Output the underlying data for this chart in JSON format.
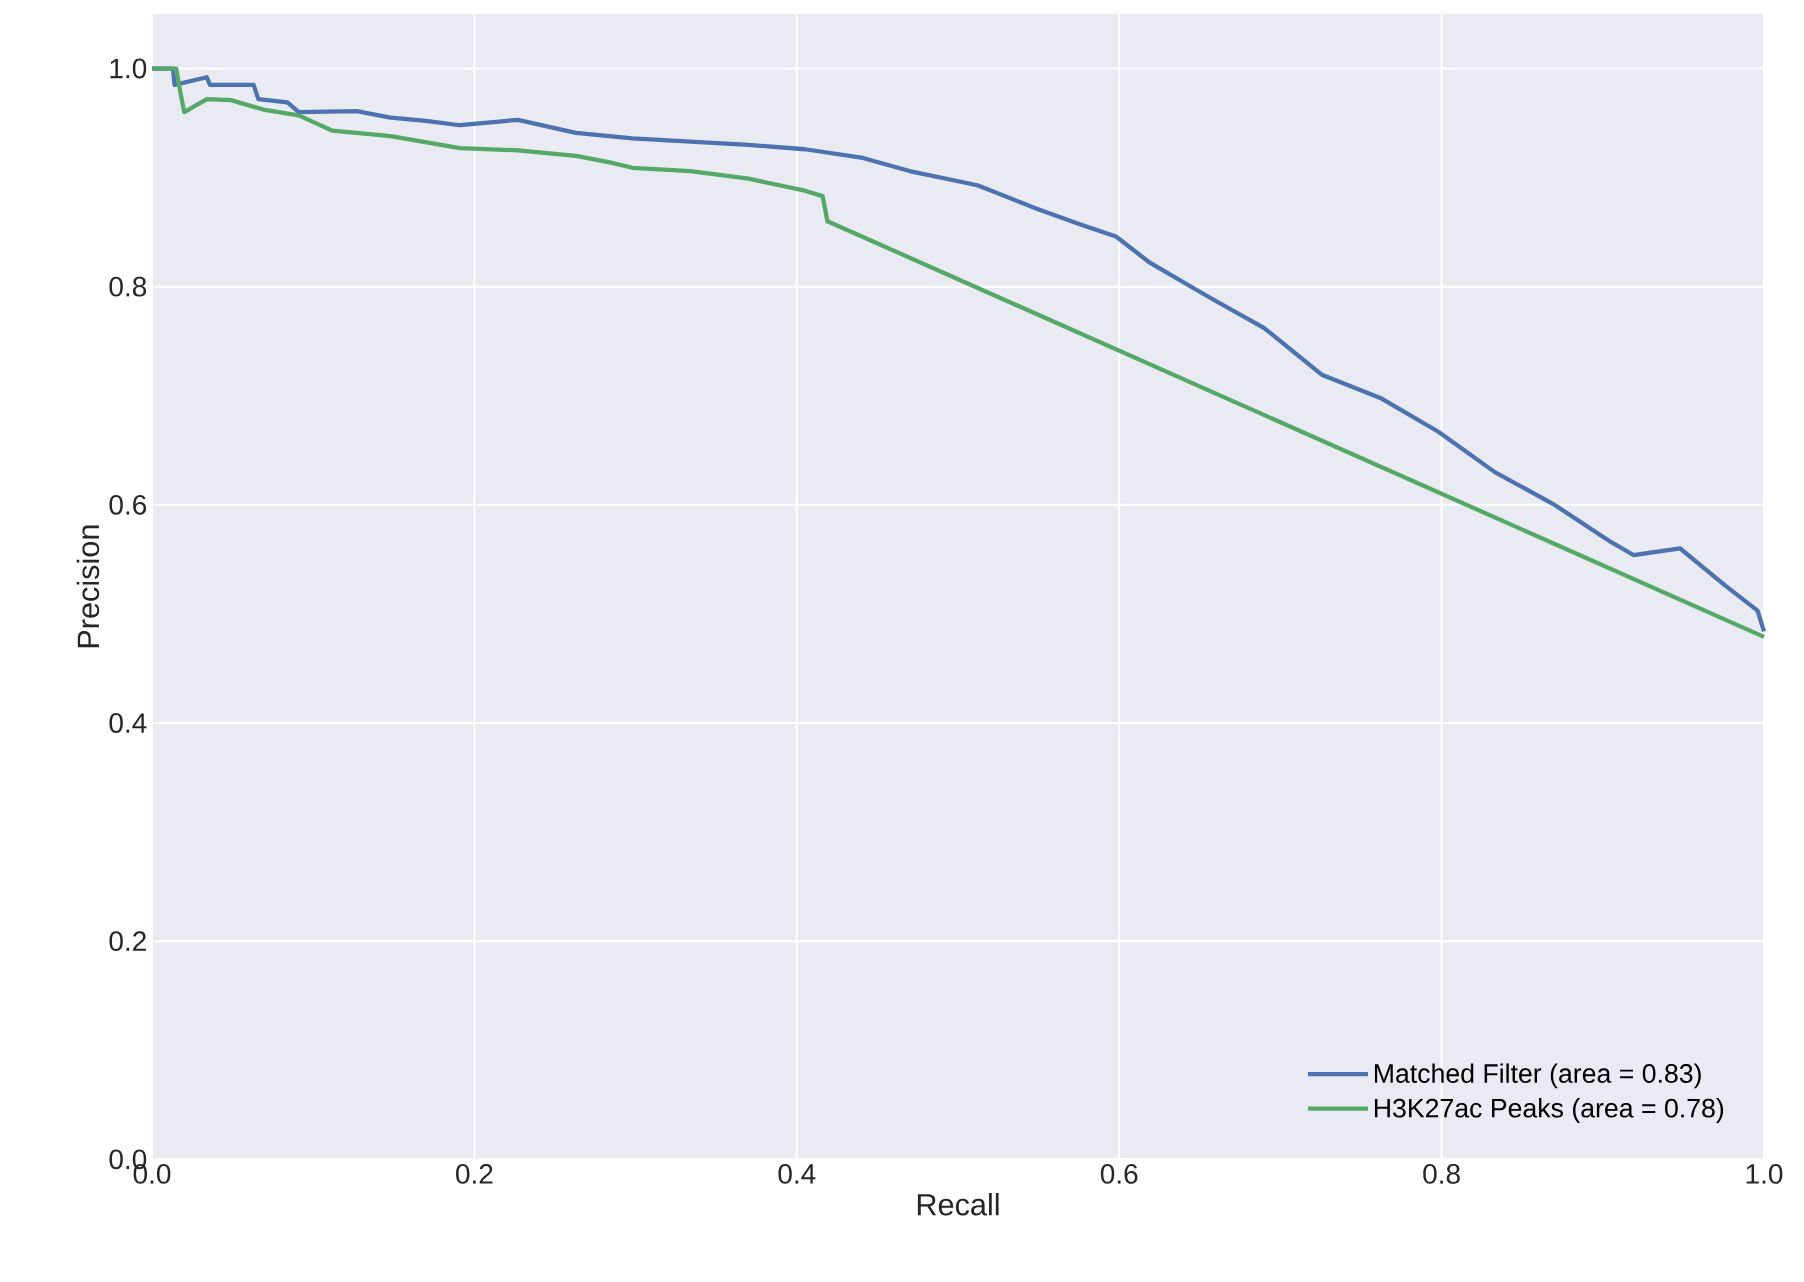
{
  "chart_data": {
    "type": "line",
    "xlabel": "Recall",
    "ylabel": "Precision",
    "xlim": [
      0,
      1
    ],
    "ylim": [
      0,
      1.05
    ],
    "xticks": [
      {
        "value": 0,
        "label": "0.0"
      },
      {
        "value": 0.2,
        "label": "0.2"
      },
      {
        "value": 0.4,
        "label": "0.4"
      },
      {
        "value": 0.6,
        "label": "0.6"
      },
      {
        "value": 0.8,
        "label": "0.8"
      },
      {
        "value": 1,
        "label": "1.0"
      }
    ],
    "yticks": [
      {
        "value": 0,
        "label": "0.0"
      },
      {
        "value": 0.2,
        "label": "0.2"
      },
      {
        "value": 0.4,
        "label": "0.4"
      },
      {
        "value": 0.6,
        "label": "0.6"
      },
      {
        "value": 0.8,
        "label": "0.8"
      },
      {
        "value": 1,
        "label": "1.0"
      }
    ],
    "grid": true,
    "legend": "bottom right",
    "series": [
      {
        "name": "Matched Filter (area = 0.83)",
        "color": "#4c72b0",
        "x": [
          0,
          0.013,
          0.014,
          0.034,
          0.036,
          0.063,
          0.066,
          0.084,
          0.091,
          0.127,
          0.148,
          0.17,
          0.191,
          0.227,
          0.263,
          0.298,
          0.334,
          0.37,
          0.405,
          0.441,
          0.47,
          0.512,
          0.548,
          0.576,
          0.598,
          0.619,
          0.655,
          0.69,
          0.726,
          0.762,
          0.798,
          0.833,
          0.869,
          0.905,
          0.919,
          0.948,
          0.976,
          0.996,
          1.0
        ],
        "values": [
          1.0,
          1.0,
          0.985,
          0.992,
          0.985,
          0.985,
          0.972,
          0.969,
          0.96,
          0.961,
          0.955,
          0.952,
          0.948,
          0.953,
          0.941,
          0.936,
          0.933,
          0.93,
          0.926,
          0.918,
          0.906,
          0.893,
          0.872,
          0.857,
          0.846,
          0.822,
          0.791,
          0.762,
          0.719,
          0.698,
          0.667,
          0.63,
          0.601,
          0.566,
          0.554,
          0.56,
          0.526,
          0.503,
          0.484
        ]
      },
      {
        "name": "H3K27ac Peaks (area = 0.78)",
        "color": "#55a868",
        "x": [
          0,
          0.015,
          0.018,
          0.02,
          0.034,
          0.049,
          0.07,
          0.091,
          0.112,
          0.148,
          0.191,
          0.227,
          0.263,
          0.284,
          0.298,
          0.334,
          0.37,
          0.405,
          0.416,
          0.419,
          1.0
        ],
        "values": [
          1.0,
          1.0,
          0.975,
          0.96,
          0.972,
          0.971,
          0.962,
          0.957,
          0.943,
          0.938,
          0.927,
          0.925,
          0.92,
          0.914,
          0.909,
          0.906,
          0.899,
          0.888,
          0.883,
          0.86,
          0.479
        ]
      }
    ]
  }
}
